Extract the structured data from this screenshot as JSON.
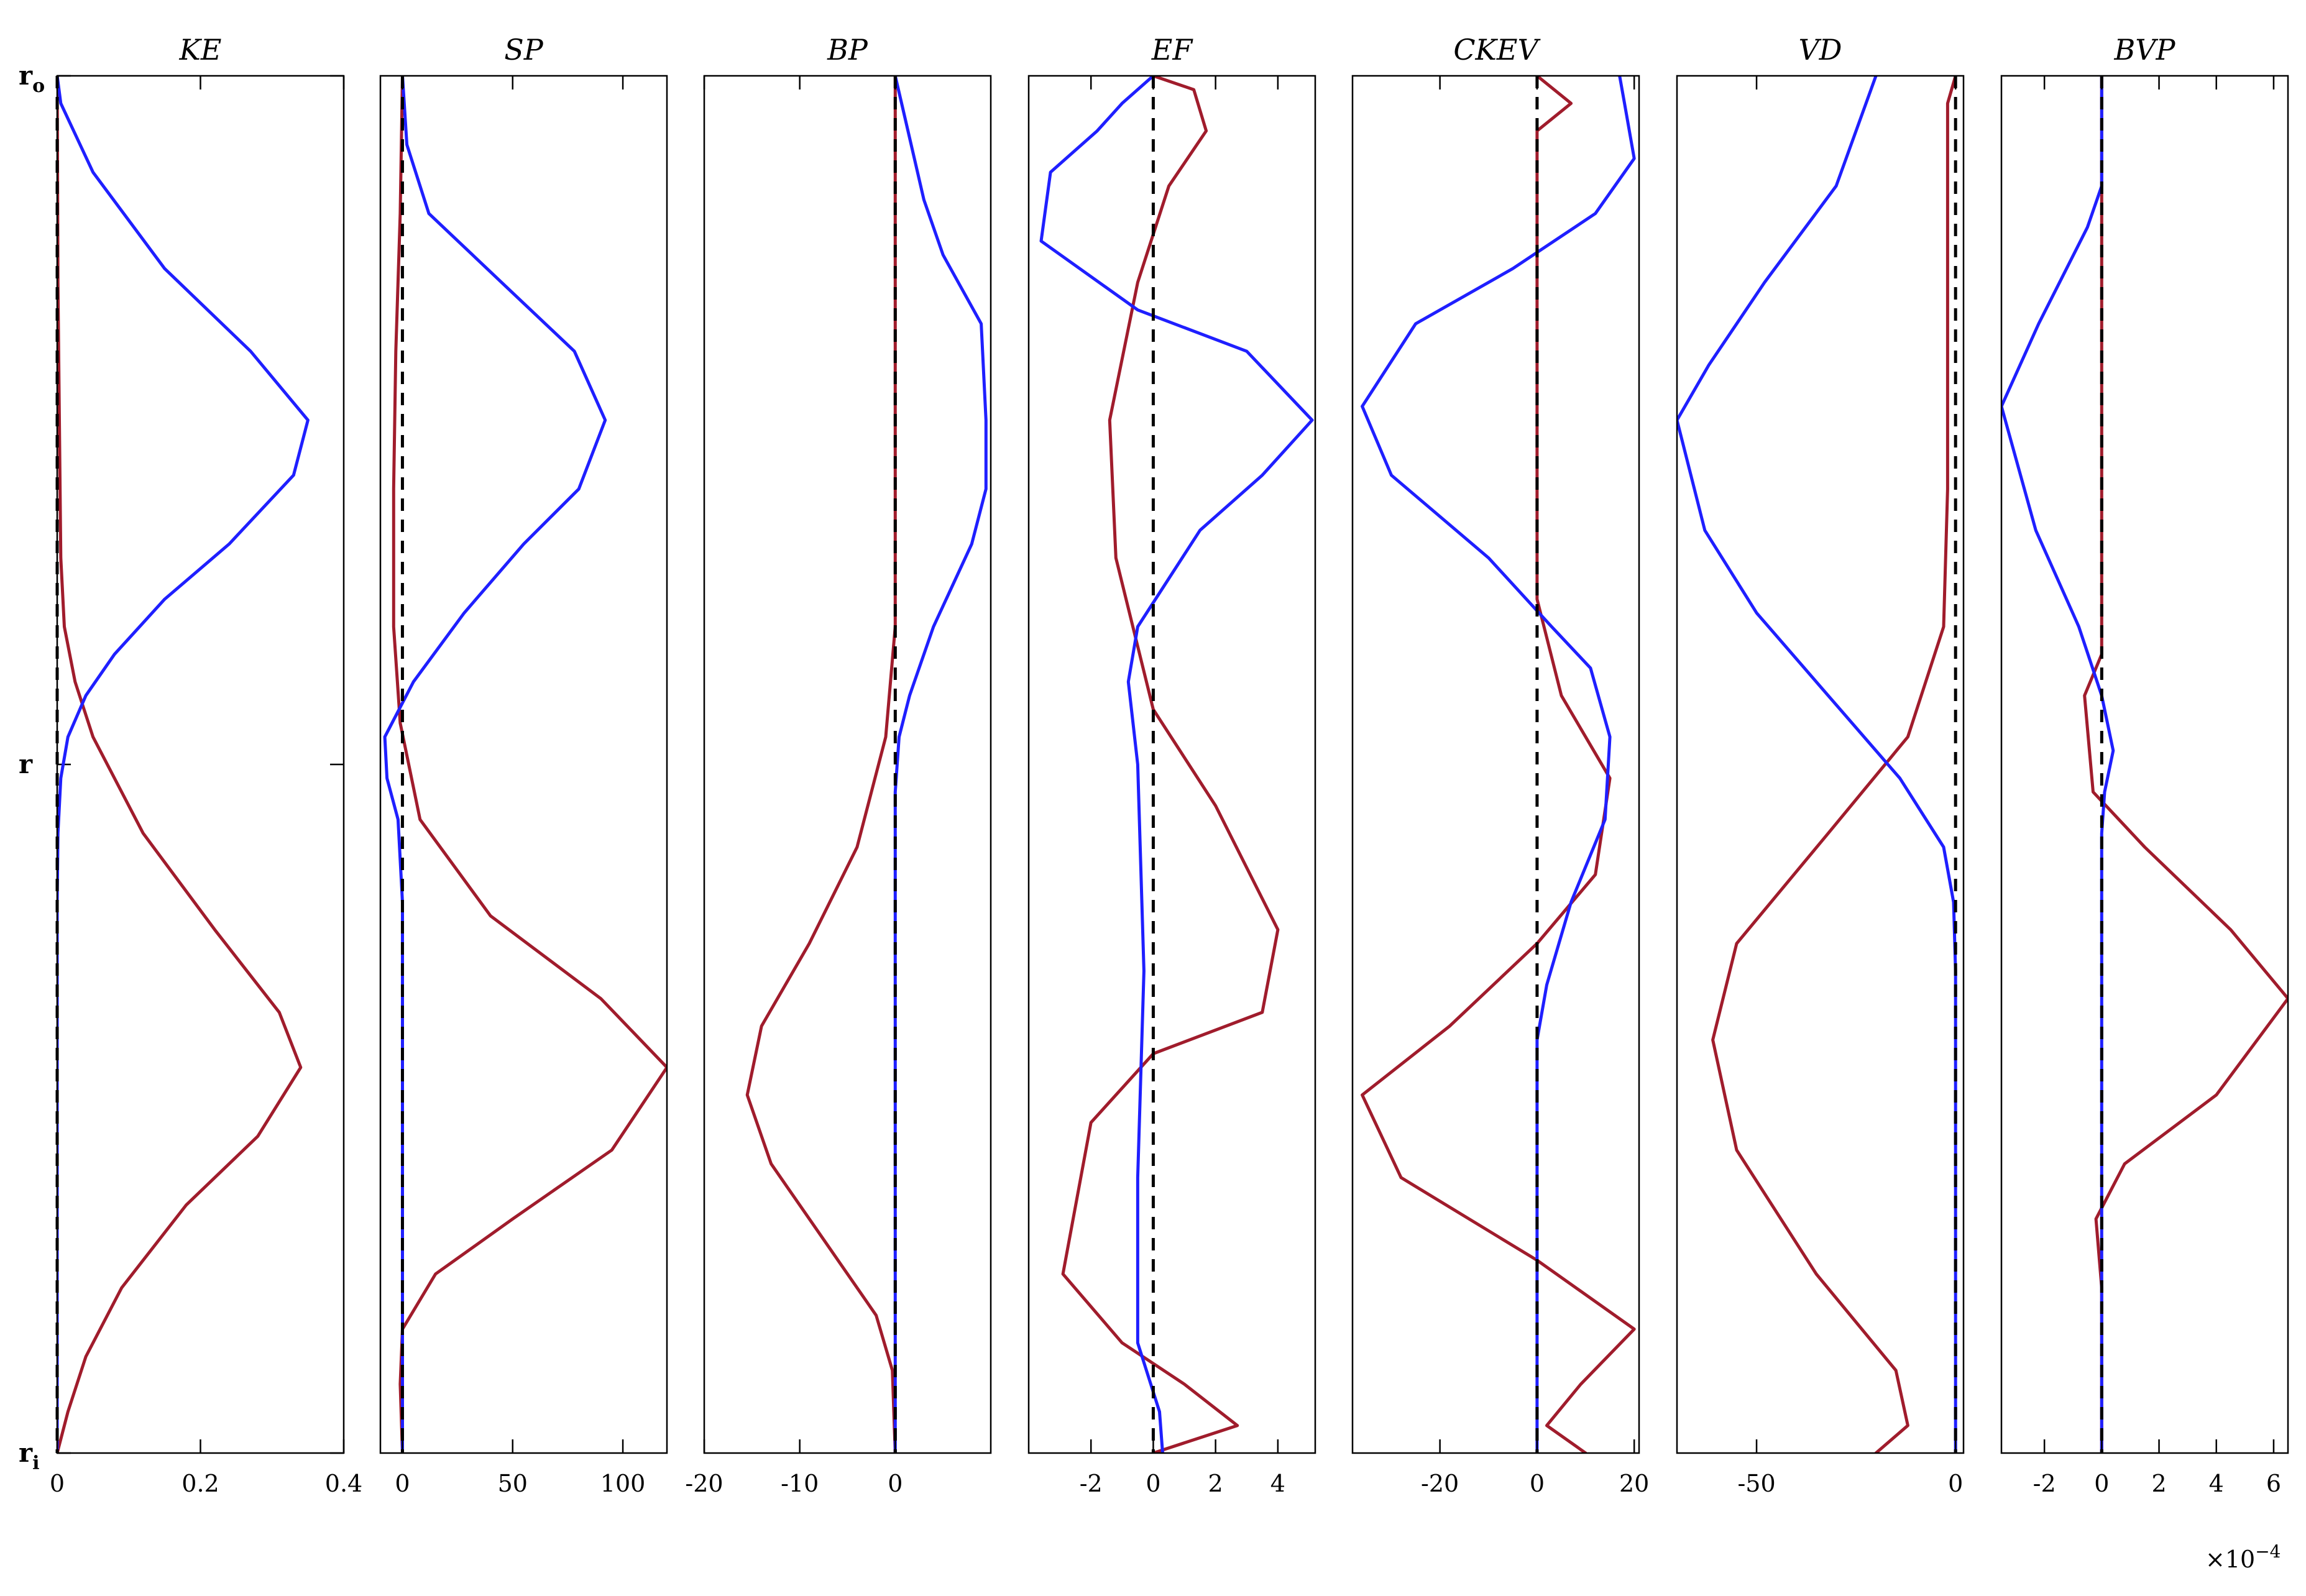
{
  "colors": {
    "blue": "#1f1fff",
    "red": "#a01c2c",
    "zero_line": "#000000"
  },
  "y_axis": {
    "labels": [
      {
        "main": "r",
        "sub": "o",
        "value": 1.0
      },
      {
        "main": "r",
        "sub": "",
        "value": 0.5
      },
      {
        "main": "r",
        "sub": "i",
        "value": 0.0
      }
    ]
  },
  "exponent_label": {
    "base": "×10",
    "power": "−4"
  },
  "chart_data": [
    {
      "type": "line",
      "title": "KE",
      "xlim": [
        0,
        0.4
      ],
      "ticks": [
        0,
        0.2,
        0.4
      ],
      "tick_labels": [
        "0",
        "0.2",
        "0.4"
      ],
      "series": [
        {
          "name": "blue",
          "points": [
            [
              0,
              1.0
            ],
            [
              0.005,
              0.98
            ],
            [
              0.05,
              0.93
            ],
            [
              0.15,
              0.86
            ],
            [
              0.27,
              0.8
            ],
            [
              0.35,
              0.75
            ],
            [
              0.33,
              0.71
            ],
            [
              0.24,
              0.66
            ],
            [
              0.15,
              0.62
            ],
            [
              0.08,
              0.58
            ],
            [
              0.04,
              0.55
            ],
            [
              0.015,
              0.52
            ],
            [
              0.005,
              0.49
            ],
            [
              0.001,
              0.45
            ],
            [
              0,
              0.4
            ],
            [
              0,
              0.0
            ]
          ]
        },
        {
          "name": "red",
          "points": [
            [
              0,
              1.0
            ],
            [
              0.001,
              0.85
            ],
            [
              0.005,
              0.65
            ],
            [
              0.01,
              0.6
            ],
            [
              0.025,
              0.56
            ],
            [
              0.05,
              0.52
            ],
            [
              0.12,
              0.45
            ],
            [
              0.22,
              0.38
            ],
            [
              0.31,
              0.32
            ],
            [
              0.34,
              0.28
            ],
            [
              0.28,
              0.23
            ],
            [
              0.18,
              0.18
            ],
            [
              0.09,
              0.12
            ],
            [
              0.04,
              0.07
            ],
            [
              0.015,
              0.03
            ],
            [
              0,
              0.0
            ]
          ]
        }
      ]
    },
    {
      "type": "line",
      "title": "SP",
      "xlim": [
        -10,
        120
      ],
      "ticks": [
        0,
        50,
        100
      ],
      "tick_labels": [
        "0",
        "50",
        "100"
      ],
      "series": [
        {
          "name": "blue",
          "points": [
            [
              0,
              1.0
            ],
            [
              2,
              0.95
            ],
            [
              12,
              0.9
            ],
            [
              45,
              0.85
            ],
            [
              78,
              0.8
            ],
            [
              92,
              0.75
            ],
            [
              80,
              0.7
            ],
            [
              55,
              0.66
            ],
            [
              28,
              0.61
            ],
            [
              5,
              0.56
            ],
            [
              -8,
              0.52
            ],
            [
              -7,
              0.49
            ],
            [
              -2,
              0.46
            ],
            [
              0,
              0.4
            ],
            [
              0,
              0.0
            ]
          ]
        },
        {
          "name": "red",
          "points": [
            [
              0,
              1.0
            ],
            [
              -1,
              0.9
            ],
            [
              -3,
              0.8
            ],
            [
              -4,
              0.7
            ],
            [
              -4,
              0.6
            ],
            [
              -1,
              0.53
            ],
            [
              8,
              0.46
            ],
            [
              40,
              0.39
            ],
            [
              90,
              0.33
            ],
            [
              120,
              0.28
            ],
            [
              95,
              0.22
            ],
            [
              50,
              0.17
            ],
            [
              15,
              0.13
            ],
            [
              0,
              0.09
            ],
            [
              -1,
              0.05
            ],
            [
              0,
              0.0
            ]
          ]
        }
      ]
    },
    {
      "type": "line",
      "title": "BP",
      "xlim": [
        -20,
        10
      ],
      "ticks": [
        -20,
        -10,
        0
      ],
      "tick_labels": [
        "-20",
        "-10",
        "0"
      ],
      "series": [
        {
          "name": "blue",
          "points": [
            [
              0,
              1.0
            ],
            [
              1,
              0.97
            ],
            [
              3,
              0.91
            ],
            [
              5,
              0.87
            ],
            [
              9,
              0.82
            ],
            [
              9.5,
              0.75
            ],
            [
              9.5,
              0.7
            ],
            [
              8,
              0.66
            ],
            [
              4,
              0.6
            ],
            [
              1.5,
              0.55
            ],
            [
              0.4,
              0.52
            ],
            [
              0,
              0.48
            ],
            [
              0,
              0.0
            ]
          ]
        },
        {
          "name": "red",
          "points": [
            [
              0,
              1.0
            ],
            [
              0,
              0.6
            ],
            [
              -1,
              0.52
            ],
            [
              -4,
              0.44
            ],
            [
              -9,
              0.37
            ],
            [
              -14,
              0.31
            ],
            [
              -15.5,
              0.26
            ],
            [
              -13,
              0.21
            ],
            [
              -7,
              0.15
            ],
            [
              -2,
              0.1
            ],
            [
              -0.3,
              0.06
            ],
            [
              0,
              0.0
            ]
          ]
        }
      ]
    },
    {
      "type": "line",
      "title": "EF",
      "xlim": [
        -4,
        5.2
      ],
      "ticks": [
        -2,
        0,
        2,
        4
      ],
      "tick_labels": [
        "-2",
        "0",
        "2",
        "4"
      ],
      "series": [
        {
          "name": "blue",
          "points": [
            [
              0.3,
              0.0
            ],
            [
              0.2,
              0.03
            ],
            [
              -0.5,
              0.08
            ],
            [
              -0.5,
              0.2
            ],
            [
              -0.3,
              0.35
            ],
            [
              -0.5,
              0.5
            ],
            [
              -0.8,
              0.56
            ],
            [
              -0.5,
              0.6
            ],
            [
              1.5,
              0.67
            ],
            [
              3.5,
              0.71
            ],
            [
              5.1,
              0.75
            ],
            [
              3.0,
              0.8
            ],
            [
              -0.5,
              0.83
            ],
            [
              -3.6,
              0.88
            ],
            [
              -3.3,
              0.93
            ],
            [
              -1.8,
              0.96
            ],
            [
              -1.0,
              0.98
            ],
            [
              0,
              1.0
            ]
          ]
        },
        {
          "name": "red",
          "points": [
            [
              0,
              0.0
            ],
            [
              2.7,
              0.02
            ],
            [
              1.0,
              0.05
            ],
            [
              -1.0,
              0.08
            ],
            [
              -2.9,
              0.13
            ],
            [
              -2.0,
              0.24
            ],
            [
              0,
              0.29
            ],
            [
              3.5,
              0.32
            ],
            [
              4.0,
              0.38
            ],
            [
              2.0,
              0.47
            ],
            [
              0,
              0.54
            ],
            [
              -1.2,
              0.65
            ],
            [
              -1.4,
              0.75
            ],
            [
              -0.5,
              0.85
            ],
            [
              0.5,
              0.92
            ],
            [
              1.7,
              0.96
            ],
            [
              1.3,
              0.99
            ],
            [
              0,
              1.0
            ]
          ]
        }
      ]
    },
    {
      "type": "line",
      "title": "CKEV",
      "xlim": [
        -38,
        21
      ],
      "ticks": [
        -20,
        0,
        20
      ],
      "tick_labels": [
        "-20",
        "0",
        "20"
      ],
      "series": [
        {
          "name": "blue",
          "points": [
            [
              0,
              0.0
            ],
            [
              0,
              0.3
            ],
            [
              2,
              0.34
            ],
            [
              7,
              0.4
            ],
            [
              14,
              0.46
            ],
            [
              15,
              0.52
            ],
            [
              11,
              0.57
            ],
            [
              3,
              0.6
            ],
            [
              -10,
              0.65
            ],
            [
              -30,
              0.71
            ],
            [
              -36,
              0.76
            ],
            [
              -25,
              0.82
            ],
            [
              -5,
              0.86
            ],
            [
              12,
              0.9
            ],
            [
              20,
              0.94
            ],
            [
              18,
              0.98
            ],
            [
              17,
              1.0
            ]
          ]
        },
        {
          "name": "red",
          "points": [
            [
              0,
              1.0
            ],
            [
              7,
              0.98
            ],
            [
              0,
              0.96
            ],
            [
              0,
              0.62
            ],
            [
              5,
              0.55
            ],
            [
              15,
              0.49
            ],
            [
              12,
              0.42
            ],
            [
              0,
              0.37
            ],
            [
              -18,
              0.31
            ],
            [
              -36,
              0.26
            ],
            [
              -28,
              0.2
            ],
            [
              0,
              0.14
            ],
            [
              20,
              0.09
            ],
            [
              9,
              0.05
            ],
            [
              2,
              0.02
            ],
            [
              10,
              0.0
            ]
          ]
        }
      ]
    },
    {
      "type": "line",
      "title": "VD",
      "xlim": [
        -70,
        2
      ],
      "ticks": [
        -50,
        0
      ],
      "tick_labels": [
        "-50",
        "0"
      ],
      "series": [
        {
          "name": "blue",
          "points": [
            [
              -20,
              1.0
            ],
            [
              -30,
              0.92
            ],
            [
              -48,
              0.85
            ],
            [
              -62,
              0.79
            ],
            [
              -70,
              0.75
            ],
            [
              -63,
              0.67
            ],
            [
              -50,
              0.61
            ],
            [
              -32,
              0.55
            ],
            [
              -14,
              0.49
            ],
            [
              -3,
              0.44
            ],
            [
              -0.5,
              0.4
            ],
            [
              0,
              0.35
            ],
            [
              0,
              0.0
            ]
          ]
        },
        {
          "name": "red",
          "points": [
            [
              0,
              1.0
            ],
            [
              -2,
              0.98
            ],
            [
              -2,
              0.7
            ],
            [
              -3,
              0.6
            ],
            [
              -12,
              0.52
            ],
            [
              -32,
              0.45
            ],
            [
              -55,
              0.37
            ],
            [
              -61,
              0.3
            ],
            [
              -55,
              0.22
            ],
            [
              -35,
              0.13
            ],
            [
              -15,
              0.06
            ],
            [
              -12,
              0.02
            ],
            [
              -20,
              0.0
            ]
          ]
        }
      ]
    },
    {
      "type": "line",
      "title": "BVP",
      "xlim": [
        -3.5,
        6.5
      ],
      "ticks": [
        -2,
        0,
        2,
        4,
        6
      ],
      "tick_labels": [
        "-2",
        "0",
        "2",
        "4",
        "6"
      ],
      "series": [
        {
          "name": "blue",
          "points": [
            [
              0,
              1.0
            ],
            [
              0,
              0.92
            ],
            [
              -0.5,
              0.89
            ],
            [
              -2.2,
              0.82
            ],
            [
              -3.5,
              0.76
            ],
            [
              -2.3,
              0.67
            ],
            [
              -0.8,
              0.6
            ],
            [
              0,
              0.55
            ],
            [
              0.4,
              0.51
            ],
            [
              0.1,
              0.48
            ],
            [
              0,
              0.45
            ],
            [
              0,
              0.0
            ]
          ]
        },
        {
          "name": "red",
          "points": [
            [
              0,
              1.0
            ],
            [
              0,
              0.58
            ],
            [
              -0.6,
              0.55
            ],
            [
              -0.3,
              0.48
            ],
            [
              1.5,
              0.44
            ],
            [
              4.5,
              0.38
            ],
            [
              6.5,
              0.33
            ],
            [
              4.0,
              0.26
            ],
            [
              0.8,
              0.21
            ],
            [
              -0.2,
              0.17
            ],
            [
              0,
              0.12
            ],
            [
              0,
              0.0
            ]
          ]
        }
      ]
    }
  ]
}
